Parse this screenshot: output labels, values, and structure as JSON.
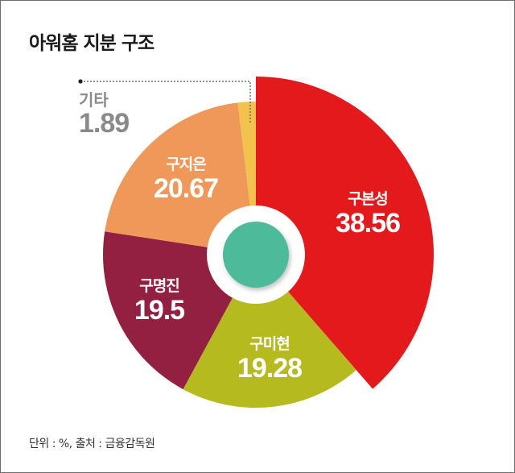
{
  "title": "아워홈 지분 구조",
  "footer": "단위 : %, 출처 : 금융감독원",
  "chart_data": {
    "type": "pie",
    "variant": "donut",
    "title": "아워홈 지분 구조",
    "unit": "%",
    "source": "금융감독원",
    "categories": [
      "구본성",
      "구미현",
      "구명진",
      "구지은",
      "기타"
    ],
    "values": [
      38.56,
      19.28,
      19.5,
      20.67,
      1.89
    ],
    "colors": [
      "#e3191c",
      "#b5bb1f",
      "#931f41",
      "#f0975a",
      "#f2c14e"
    ],
    "start_angle_deg": 0,
    "direction": "clockwise",
    "highlight": "구본성",
    "center_color": "#4dba99",
    "legend": "none"
  },
  "labels": {
    "s0": {
      "name": "구본성",
      "value": "38.56"
    },
    "s1": {
      "name": "구미현",
      "value": "19.28"
    },
    "s2": {
      "name": "구명진",
      "value": "19.5"
    },
    "s3": {
      "name": "구지은",
      "value": "20.67"
    },
    "s4": {
      "name": "기타",
      "value": "1.89"
    }
  }
}
